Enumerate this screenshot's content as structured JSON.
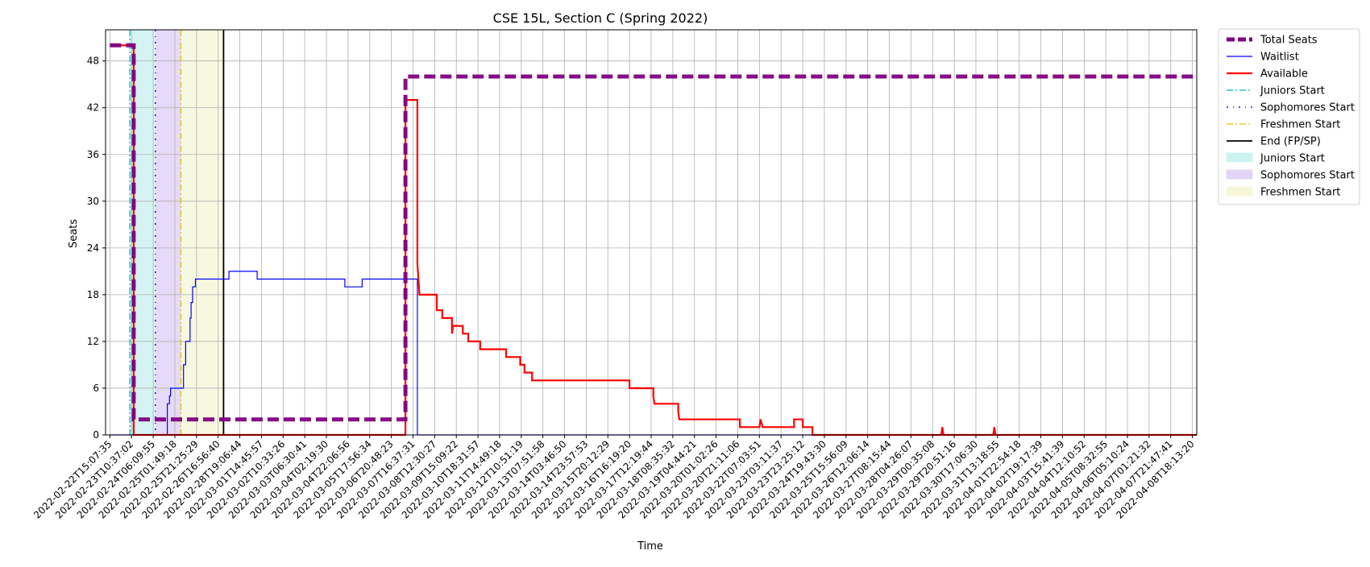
{
  "chart_data": {
    "type": "line",
    "title": "CSE 15L, Section C (Spring 2022)",
    "xlabel": "Time",
    "ylabel": "Seats",
    "ylim": [
      0,
      52
    ],
    "yticks": [
      0,
      6,
      12,
      18,
      24,
      30,
      36,
      42,
      48
    ],
    "grid": true,
    "legend_position": "outside-top-right",
    "xtick_labels": [
      "2022-02-22T15:07:35",
      "2022-02-23T10:37:02",
      "2022-02-24T06:09:55",
      "2022-02-25T01:49:18",
      "2022-02-25T21:25:29",
      "2022-02-26T16:56:40",
      "2022-02-28T19:06:44",
      "2022-03-01T14:45:57",
      "2022-03-02T10:33:26",
      "2022-03-03T06:30:41",
      "2022-03-04T02:19:30",
      "2022-03-04T22:06:56",
      "2022-03-05T17:56:34",
      "2022-03-06T20:48:23",
      "2022-03-07T16:37:31",
      "2022-03-08T12:30:27",
      "2022-03-09T15:09:22",
      "2022-03-10T18:31:57",
      "2022-03-11T14:49:18",
      "2022-03-12T10:51:19",
      "2022-03-13T07:51:58",
      "2022-03-14T03:46:50",
      "2022-03-14T23:57:53",
      "2022-03-15T20:12:29",
      "2022-03-16T16:19:20",
      "2022-03-17T12:19:44",
      "2022-03-18T08:35:32",
      "2022-03-19T04:44:21",
      "2022-03-20T01:02:26",
      "2022-03-20T21:11:06",
      "2022-03-22T07:03:51",
      "2022-03-23T03:11:37",
      "2022-03-23T23:25:12",
      "2022-03-24T19:43:30",
      "2022-03-25T15:56:09",
      "2022-03-26T12:06:14",
      "2022-03-27T08:15:44",
      "2022-03-28T04:26:07",
      "2022-03-29T00:35:08",
      "2022-03-29T20:51:16",
      "2022-03-30T17:06:30",
      "2022-03-31T13:18:55",
      "2022-04-01T22:54:18",
      "2022-04-02T19:17:39",
      "2022-04-03T15:41:39",
      "2022-04-04T12:10:52",
      "2022-04-05T08:32:55",
      "2022-04-06T05:10:24",
      "2022-04-07T01:21:32",
      "2022-04-07T21:47:41",
      "2022-04-08T18:13:20"
    ],
    "colors": {
      "total": "#800080",
      "waitlist": "#0000ff",
      "available": "#ff0000",
      "juniors": "#00bfbf",
      "sophomores": "#3f00ff",
      "freshmen": "#e6c300",
      "end": "#000000",
      "juniors_fill": "#cdf2f2",
      "sophomores_fill": "#e1d4f6",
      "freshmen_fill": "#f6f7da",
      "grid": "#b0b0b0"
    },
    "series": [
      {
        "name": "Total Seats",
        "style": "dashed-thick",
        "color": "#800080",
        "points": [
          [
            0,
            50
          ],
          [
            1.1,
            50
          ],
          [
            1.1,
            2
          ],
          [
            13.65,
            2
          ],
          [
            13.65,
            46
          ],
          [
            50.2,
            46
          ]
        ]
      },
      {
        "name": "Waitlist",
        "style": "solid-thin",
        "color": "#0000ff",
        "points": [
          [
            0,
            0
          ],
          [
            2.65,
            0
          ],
          [
            2.65,
            4
          ],
          [
            2.75,
            4
          ],
          [
            2.75,
            5
          ],
          [
            2.8,
            5
          ],
          [
            2.8,
            6
          ],
          [
            3.4,
            6
          ],
          [
            3.4,
            9
          ],
          [
            3.5,
            9
          ],
          [
            3.5,
            12
          ],
          [
            3.7,
            12
          ],
          [
            3.7,
            15
          ],
          [
            3.75,
            15
          ],
          [
            3.75,
            17
          ],
          [
            3.82,
            17
          ],
          [
            3.82,
            19
          ],
          [
            3.95,
            19
          ],
          [
            3.95,
            20
          ],
          [
            5.5,
            20
          ],
          [
            5.5,
            21
          ],
          [
            6.8,
            21
          ],
          [
            6.8,
            20
          ],
          [
            10.85,
            20
          ],
          [
            10.85,
            19
          ],
          [
            11.65,
            19
          ],
          [
            11.65,
            20
          ],
          [
            14.2,
            20
          ],
          [
            14.2,
            0
          ],
          [
            50.2,
            0
          ]
        ]
      },
      {
        "name": "Available",
        "style": "solid-thick",
        "color": "#ff0000",
        "points": [
          [
            0,
            50
          ],
          [
            1.1,
            50
          ],
          [
            1.1,
            0
          ],
          [
            13.65,
            0
          ],
          [
            13.65,
            43
          ],
          [
            14.2,
            43
          ],
          [
            14.2,
            22
          ],
          [
            14.3,
            18
          ],
          [
            15.1,
            18
          ],
          [
            15.1,
            16
          ],
          [
            15.35,
            16
          ],
          [
            15.35,
            15
          ],
          [
            15.8,
            15
          ],
          [
            15.8,
            13
          ],
          [
            15.85,
            14
          ],
          [
            16.3,
            14
          ],
          [
            16.3,
            13
          ],
          [
            16.55,
            13
          ],
          [
            16.55,
            12
          ],
          [
            17.1,
            12
          ],
          [
            17.1,
            11
          ],
          [
            18.3,
            11
          ],
          [
            18.3,
            10
          ],
          [
            18.95,
            10
          ],
          [
            18.95,
            9
          ],
          [
            19.15,
            9
          ],
          [
            19.15,
            8
          ],
          [
            19.5,
            8
          ],
          [
            19.5,
            7
          ],
          [
            24.0,
            7
          ],
          [
            24.0,
            6
          ],
          [
            25.1,
            6
          ],
          [
            25.1,
            5
          ],
          [
            25.15,
            4
          ],
          [
            26.25,
            4
          ],
          [
            26.25,
            3
          ],
          [
            26.3,
            2
          ],
          [
            29.1,
            2
          ],
          [
            29.1,
            1
          ],
          [
            30.0,
            1
          ],
          [
            30.05,
            2
          ],
          [
            30.15,
            1
          ],
          [
            31.6,
            1
          ],
          [
            31.6,
            2
          ],
          [
            32.0,
            2
          ],
          [
            32.0,
            1
          ],
          [
            32.45,
            1
          ],
          [
            32.45,
            0
          ],
          [
            38.4,
            0
          ],
          [
            38.45,
            1
          ],
          [
            38.5,
            0
          ],
          [
            40.8,
            0
          ],
          [
            40.85,
            1
          ],
          [
            40.9,
            0
          ],
          [
            50.2,
            0
          ]
        ]
      }
    ],
    "vertical_lines": [
      {
        "name": "Juniors Start",
        "x": 0.92,
        "style": "dashdot",
        "color": "#00bfbf"
      },
      {
        "name": "Sophomores Start",
        "x": 2.1,
        "style": "dashdot-dense",
        "color": "#3f00ff"
      },
      {
        "name": "Freshmen Start",
        "x": 3.28,
        "style": "dashdot",
        "color": "#e6c300"
      },
      {
        "name": "End (FP/SP)",
        "x": 5.25,
        "style": "solid",
        "color": "#000000"
      }
    ],
    "shaded_regions": [
      {
        "name": "Juniors Start",
        "x0": 0.92,
        "x1": 2.1,
        "color": "#cdf2f2"
      },
      {
        "name": "Sophomores Start",
        "x0": 2.1,
        "x1": 3.28,
        "color": "#e1d4f6"
      },
      {
        "name": "Freshmen Start",
        "x0": 3.28,
        "x1": 5.25,
        "color": "#f6f7da"
      }
    ],
    "legend": [
      {
        "label": "Total Seats",
        "kind": "line",
        "color": "#800080",
        "style": "dashed-thick"
      },
      {
        "label": "Waitlist",
        "kind": "line",
        "color": "#0000ff",
        "style": "solid-thin"
      },
      {
        "label": "Available",
        "kind": "line",
        "color": "#ff0000",
        "style": "solid-thick"
      },
      {
        "label": "Juniors Start",
        "kind": "line",
        "color": "#00bfbf",
        "style": "dashdot"
      },
      {
        "label": "Sophomores Start",
        "kind": "line",
        "color": "#3f00ff",
        "style": "dashdot-dense"
      },
      {
        "label": "Freshmen Start",
        "kind": "line",
        "color": "#e6c300",
        "style": "dashdot"
      },
      {
        "label": "End (FP/SP)",
        "kind": "line",
        "color": "#000000",
        "style": "solid"
      },
      {
        "label": "Juniors Start",
        "kind": "patch",
        "color": "#cdf2f2"
      },
      {
        "label": "Sophomores Start",
        "kind": "patch",
        "color": "#e1d4f6"
      },
      {
        "label": "Freshmen Start",
        "kind": "patch",
        "color": "#f6f7da"
      }
    ]
  }
}
